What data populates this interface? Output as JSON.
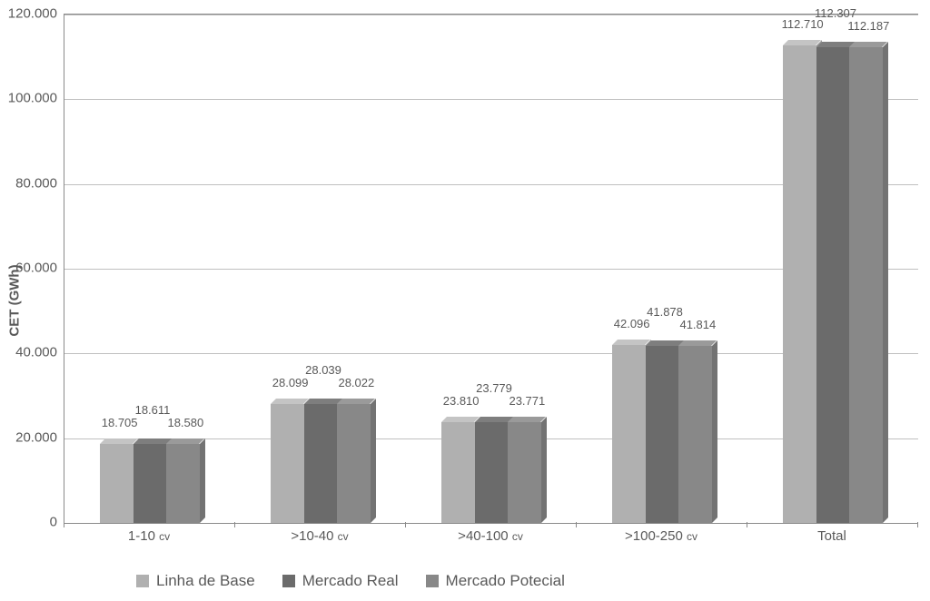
{
  "chart": {
    "type": "bar",
    "yaxis_title": "CET (GWh)",
    "ylim": [
      0,
      120000
    ],
    "ytick_step": 20000,
    "yticks": [
      "0",
      "20.000",
      "40.000",
      "60.000",
      "80.000",
      "100.000",
      "120.000"
    ],
    "grid_color": "#bfbfbf",
    "border_color": "#8a8a8a",
    "background_color": "#ffffff",
    "label_color": "#595959",
    "label_fontsize": 15,
    "datalabel_fontsize": 13,
    "bar_gap": 0,
    "group_gap_ratio": 0.42,
    "categories": [
      {
        "label": "1-10",
        "suffix": "cv"
      },
      {
        "label": ">10-40",
        "suffix": "cv"
      },
      {
        "label": ">40-100",
        "suffix": "cv"
      },
      {
        "label": ">100-250",
        "suffix": "cv"
      },
      {
        "label": "Total",
        "suffix": ""
      }
    ],
    "series": [
      {
        "name": "Linha de Base",
        "color_fill": "#b0b0b0",
        "color_side": "#9a9a9a",
        "color_top": "#c4c4c4"
      },
      {
        "name": "Mercado Real",
        "color_fill": "#6b6b6b",
        "color_side": "#585858",
        "color_top": "#7e7e7e"
      },
      {
        "name": "Mercado Potecial",
        "color_fill": "#888888",
        "color_side": "#737373",
        "color_top": "#9a9a9a"
      }
    ],
    "values": [
      [
        18705,
        18611,
        18580
      ],
      [
        28099,
        28039,
        28022
      ],
      [
        23810,
        23779,
        23771
      ],
      [
        42096,
        41878,
        41814
      ],
      [
        112710,
        112307,
        112187
      ]
    ],
    "value_labels": [
      [
        "18.705",
        "18.611",
        "18.580"
      ],
      [
        "28.099",
        "28.039",
        "28.022"
      ],
      [
        "23.810",
        "23.779",
        "23.771"
      ],
      [
        "42.096",
        "41.878",
        "41.814"
      ],
      [
        "112.710",
        "112.307",
        "112.187"
      ]
    ],
    "legend": {
      "items": [
        "Linha de Base",
        "Mercado Real",
        "Mercado Potecial"
      ],
      "fontsize": 17
    }
  }
}
